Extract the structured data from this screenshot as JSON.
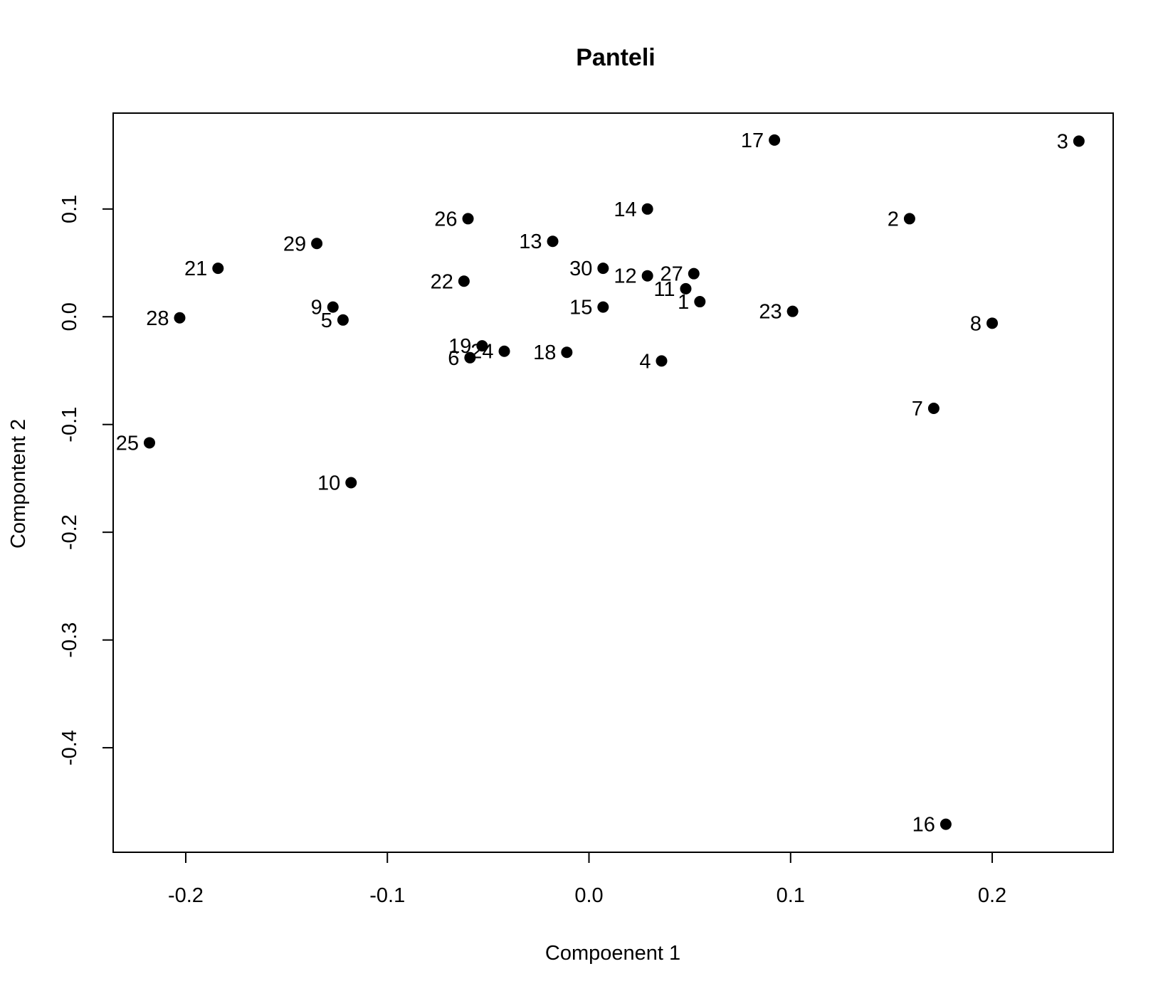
{
  "chart_data": {
    "type": "scatter",
    "title": "Panteli",
    "xlabel": "Compoenent 1",
    "ylabel": "Compontent 2",
    "xlim": [
      -0.236,
      0.26
    ],
    "ylim": [
      -0.497,
      0.189
    ],
    "x_ticks": [
      {
        "value": -0.2,
        "label": "-0.2"
      },
      {
        "value": -0.1,
        "label": "-0.1"
      },
      {
        "value": 0.0,
        "label": "0.0"
      },
      {
        "value": 0.1,
        "label": "0.1"
      },
      {
        "value": 0.2,
        "label": "0.2"
      }
    ],
    "y_ticks": [
      {
        "value": -0.4,
        "label": "-0.4"
      },
      {
        "value": -0.3,
        "label": "-0.3"
      },
      {
        "value": -0.2,
        "label": "-0.2"
      },
      {
        "value": -0.1,
        "label": "-0.1"
      },
      {
        "value": 0.0,
        "label": "0.0"
      },
      {
        "value": 0.1,
        "label": "0.1"
      }
    ],
    "grid": false,
    "legend": "none",
    "marker_color": "#000000",
    "points": [
      {
        "label": "1",
        "x": 0.055,
        "y": 0.014
      },
      {
        "label": "2",
        "x": 0.159,
        "y": 0.091
      },
      {
        "label": "3",
        "x": 0.243,
        "y": 0.163
      },
      {
        "label": "4",
        "x": 0.036,
        "y": -0.041
      },
      {
        "label": "5",
        "x": -0.122,
        "y": -0.003
      },
      {
        "label": "6",
        "x": -0.059,
        "y": -0.038
      },
      {
        "label": "7",
        "x": 0.171,
        "y": -0.085
      },
      {
        "label": "8",
        "x": 0.2,
        "y": -0.006
      },
      {
        "label": "9",
        "x": -0.127,
        "y": 0.009
      },
      {
        "label": "10",
        "x": -0.118,
        "y": -0.154
      },
      {
        "label": "11",
        "x": 0.048,
        "y": 0.026
      },
      {
        "label": "12",
        "x": 0.029,
        "y": 0.038
      },
      {
        "label": "13",
        "x": -0.018,
        "y": 0.07
      },
      {
        "label": "14",
        "x": 0.029,
        "y": 0.1
      },
      {
        "label": "15",
        "x": 0.007,
        "y": 0.009
      },
      {
        "label": "16",
        "x": 0.177,
        "y": -0.471
      },
      {
        "label": "17",
        "x": 0.092,
        "y": 0.164
      },
      {
        "label": "18",
        "x": -0.011,
        "y": -0.033
      },
      {
        "label": "19",
        "x": -0.053,
        "y": -0.027
      },
      {
        "label": "21",
        "x": -0.184,
        "y": 0.045
      },
      {
        "label": "22",
        "x": -0.062,
        "y": 0.033
      },
      {
        "label": "23",
        "x": 0.101,
        "y": 0.005
      },
      {
        "label": "24",
        "x": -0.042,
        "y": -0.032
      },
      {
        "label": "25",
        "x": -0.218,
        "y": -0.117
      },
      {
        "label": "26",
        "x": -0.06,
        "y": 0.091
      },
      {
        "label": "27",
        "x": 0.052,
        "y": 0.04
      },
      {
        "label": "28",
        "x": -0.203,
        "y": -0.001
      },
      {
        "label": "29",
        "x": -0.135,
        "y": 0.068
      },
      {
        "label": "30",
        "x": 0.007,
        "y": 0.045
      }
    ]
  }
}
